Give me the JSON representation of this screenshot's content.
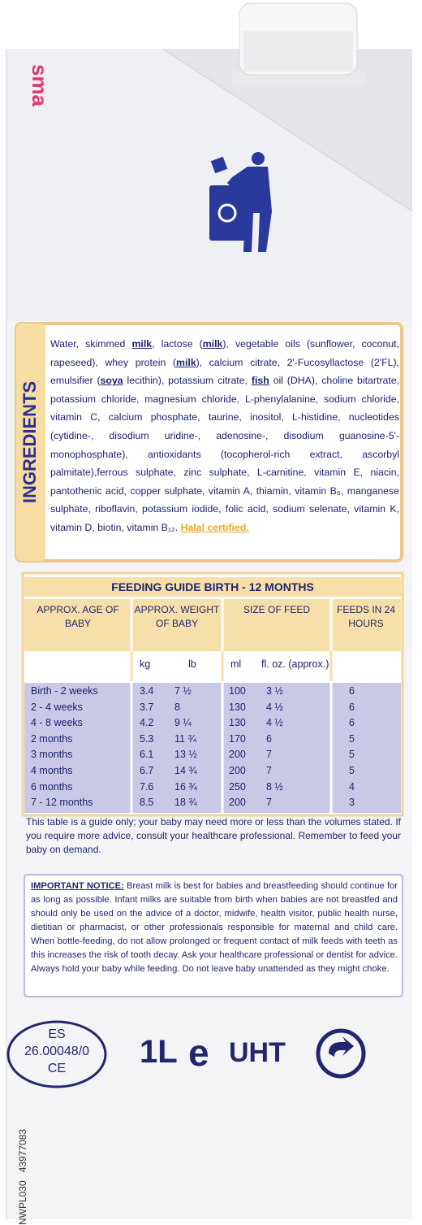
{
  "brand": "sma",
  "ingredients": {
    "heading": "INGREDIENTS",
    "parts": [
      {
        "text": "Water, skimmed "
      },
      {
        "text": "milk",
        "bold": true
      },
      {
        "text": ", lactose ("
      },
      {
        "text": "milk",
        "bold": true
      },
      {
        "text": "), vegetable oils (sunflower, coconut, rapeseed), whey protein ("
      },
      {
        "text": "milk",
        "bold": true
      },
      {
        "text": "), calcium citrate, 2'-Fucosyllactose (2'FL), emulsifier ("
      },
      {
        "text": "soya",
        "bold": true
      },
      {
        "text": " lecithin), potassium citrate, "
      },
      {
        "text": "fish",
        "bold": true
      },
      {
        "text": " oil (DHA), choline bitartrate, potassium chloride, magnesium chloride, L-phenylalanine, sodium chloride, vitamin C, calcium phosphate, taurine, inositol, L-histidine, nucleotides (cytidine-, disodium uridine-, adenosine-, disodium guanosine-5'-monophosphate), antioxidants (tocopherol-rich extract, ascorbyl palmitate),ferrous sulphate, zinc sulphate, L-carnitine, vitamin E, niacin, pantothenic acid, copper sulphate, vitamin A, thiamin, vitamin B₆, manganese sulphate, riboflavin, potassium iodide, folic acid, sodium selenate, vitamin K, vitamin D, biotin, vitamin B₁₂. "
      }
    ],
    "halal": "Halal certified."
  },
  "table": {
    "title": "FEEDING GUIDE BIRTH - 12 MONTHS",
    "headers": [
      "APPROX. AGE OF BABY",
      "APPROX. WEIGHT OF BABY",
      "SIZE OF FEED",
      "FEEDS IN 24 HOURS"
    ],
    "units": [
      "kg",
      "lb",
      "ml",
      "fl. oz. (approx.)"
    ],
    "rows": [
      [
        "Birth - 2 weeks",
        "3.4",
        "7 ½",
        "100",
        "3 ½",
        "6"
      ],
      [
        "2 - 4 weeks",
        "3.7",
        "8",
        "130",
        "4 ½",
        "6"
      ],
      [
        "4 - 8 weeks",
        "4.2",
        "9 ¼",
        "130",
        "4 ½",
        "6"
      ],
      [
        "2 months",
        "5.3",
        "11 ¾",
        "170",
        "6",
        "5"
      ],
      [
        "3 months",
        "6.1",
        "13 ½",
        "200",
        "7",
        "5"
      ],
      [
        "4 months",
        "6.7",
        "14 ¾",
        "200",
        "7",
        "5"
      ],
      [
        "6 months",
        "7.6",
        "16 ¾",
        "250",
        "8 ½",
        "4"
      ],
      [
        "7 - 12 months",
        "8.5",
        "18 ¾",
        "200",
        "7",
        "3"
      ]
    ]
  },
  "guide_note": "This table is a guide only; your baby may need more or less than the volumes stated. If you require more advice, consult your healthcare professional. Remember to feed your baby on demand.",
  "notice": {
    "label": "IMPORTANT NOTICE:",
    "text": " Breast milk is best for babies and breastfeeding should continue for as long as possible. Infant milks are suitable from birth when babies are not breastfed and should only be used on the advice of a doctor, midwife, health visitor, public health nurse, dietitian or pharmacist, or other professionals responsible for maternal and child care. When bottle-feeding, do not allow prolonged or frequent contact of milk feeds with teeth as this increases the risk of tooth decay. Ask your healthcare professional or dentist for advice. Always hold your baby while feeding. Do not leave baby unattended as they might choke."
  },
  "mark": {
    "country": "ES",
    "number": "26.00048/0",
    "region": "CE"
  },
  "volume": "1L",
  "estimated": "e",
  "process": "UHT",
  "codes": [
    "NWPL030",
    "43977083"
  ]
}
